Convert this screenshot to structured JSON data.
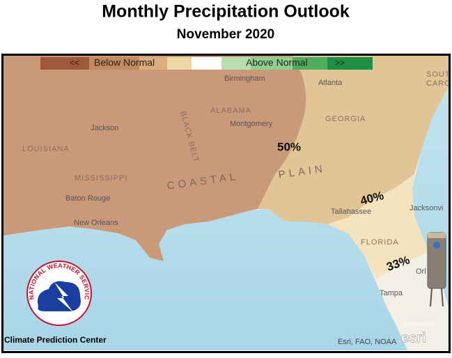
{
  "header": {
    "title": "Monthly Precipitation Outlook",
    "subtitle": "November 2020"
  },
  "legend": {
    "left_arrow": "<<",
    "below": "Below Normal",
    "above": "Above Normal",
    "right_arrow": ">>"
  },
  "contours": [
    "50%",
    "40%",
    "33%"
  ],
  "places": {
    "birmingham": "Birmingham",
    "atlanta": "Atlanta",
    "alabama": "ALABAMA",
    "montgomery": "Montgomery",
    "georgia": "GEORGIA",
    "jackson": "Jackson",
    "louisiana": "LOUISIANA",
    "mississippi": "MISSISSIPPI",
    "baton_rouge": "Baton Rouge",
    "new_orleans": "New Orleans",
    "tallahassee": "Tallahassee",
    "florida": "FLORIDA",
    "jacksonville": "Jacksonvi",
    "orlando": "Orl",
    "tampa": "Tampa",
    "south": "SOUTH",
    "carolina": "CAROL",
    "black_belt": "BLACK BELT",
    "coastal": "COASTAL",
    "plain": "PLAIN"
  },
  "footer": {
    "source": "Climate Prediction Center",
    "credits": "Esri, FAO, NOAA",
    "powered": "POWERED BY",
    "esri": "esri",
    "nws": "NATIONAL WEATHER SERVICE"
  }
}
